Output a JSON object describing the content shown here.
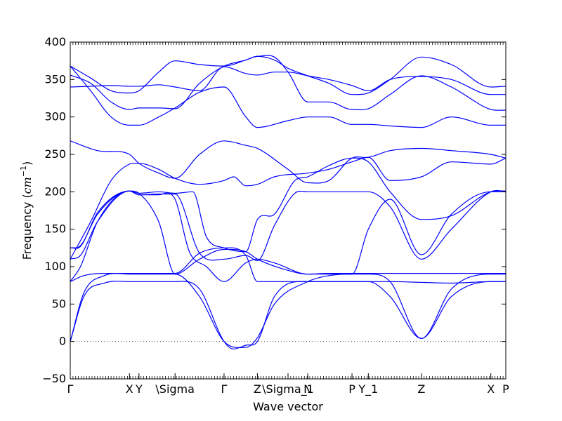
{
  "chart_data": {
    "type": "line",
    "title": "",
    "xlabel": "Wave vector",
    "ylabel_prefix": "Frequency (",
    "ylabel_unit": "cm",
    "ylabel_exp": "−1",
    "ylabel_suffix": ")",
    "xlim": [
      0,
      640
    ],
    "ylim": [
      -50,
      400
    ],
    "yticks": [
      -50,
      0,
      50,
      100,
      150,
      200,
      250,
      300,
      350,
      400
    ],
    "ytick_labels": [
      "−50",
      "0",
      "50",
      "100",
      "150",
      "200",
      "250",
      "300",
      "350",
      "400"
    ],
    "xtick_labels": [
      {
        "x": 0,
        "label": "Γ"
      },
      {
        "x": 87,
        "label": "X"
      },
      {
        "x": 101,
        "label": "Y"
      },
      {
        "x": 154,
        "label": "\\Sigma"
      },
      {
        "x": 226,
        "label": "Γ"
      },
      {
        "x": 275,
        "label": "Z"
      },
      {
        "x": 320,
        "label": "\\Sigma_1"
      },
      {
        "x": 349,
        "label": "N"
      },
      {
        "x": 414,
        "label": "P"
      },
      {
        "x": 438,
        "label": "Y_1"
      },
      {
        "x": 516,
        "label": "Z"
      },
      {
        "x": 618,
        "label": "X"
      },
      {
        "x": 640,
        "label": "P"
      }
    ],
    "line_color": "#0000ff",
    "zero_line": true,
    "grid": false,
    "series": [
      {
        "x": [
          0,
          20,
          50,
          87,
          101,
          130,
          154,
          190,
          226,
          240,
          258,
          275,
          300,
          349,
          380,
          414,
          438,
          470,
          516,
          560,
          618,
          640
        ],
        "y": [
          0,
          60,
          78,
          80,
          80,
          80,
          80,
          70,
          0,
          -10,
          -5,
          0,
          60,
          80,
          80,
          80,
          80,
          60,
          4,
          60,
          80,
          80
        ]
      },
      {
        "x": [
          0,
          20,
          50,
          87,
          101,
          130,
          154,
          190,
          226,
          258,
          275,
          300,
          349,
          380,
          414,
          438,
          470,
          516,
          560,
          618,
          640
        ],
        "y": [
          0,
          65,
          88,
          90,
          90,
          90,
          90,
          60,
          0,
          -8,
          5,
          50,
          80,
          88,
          90,
          90,
          80,
          4,
          70,
          90,
          90
        ]
      },
      {
        "x": [
          0,
          20,
          50,
          87,
          101,
          130,
          154,
          190,
          226,
          258,
          275,
          310,
          349,
          380,
          414,
          438,
          470,
          516,
          560,
          618,
          640
        ],
        "y": [
          80,
          88,
          91,
          91,
          91,
          91,
          91,
          118,
          125,
          115,
          80,
          80,
          80,
          80,
          80,
          80,
          80,
          79,
          78,
          80,
          80
        ]
      },
      {
        "x": [
          0,
          15,
          40,
          87,
          101,
          130,
          154,
          190,
          226,
          258,
          275,
          320,
          349,
          380,
          414,
          438,
          470,
          516,
          560,
          618,
          640
        ],
        "y": [
          80,
          100,
          160,
          201,
          198,
          160,
          90,
          110,
          123,
          120,
          110,
          95,
          90,
          91,
          91,
          91,
          91,
          91,
          91,
          91,
          91
        ]
      },
      {
        "x": [
          0,
          15,
          40,
          87,
          101,
          130,
          154,
          175,
          200,
          226,
          258,
          275,
          300,
          349,
          380,
          414,
          438,
          470,
          516,
          560,
          618,
          640
        ],
        "y": [
          110,
          115,
          160,
          201,
          196,
          196,
          190,
          120,
          100,
          80,
          105,
          110,
          105,
          90,
          90,
          90,
          150,
          190,
          116,
          170,
          200,
          200
        ]
      },
      {
        "x": [
          0,
          15,
          40,
          87,
          101,
          130,
          154,
          190,
          226,
          258,
          275,
          300,
          330,
          349,
          380,
          414,
          438,
          470,
          516,
          560,
          618,
          640
        ],
        "y": [
          125,
          128,
          170,
          201,
          196,
          197,
          197,
          118,
          110,
          115,
          108,
          155,
          198,
          200,
          200,
          200,
          200,
          180,
          110,
          150,
          200,
          201
        ]
      },
      {
        "x": [
          0,
          15,
          40,
          87,
          101,
          130,
          154,
          180,
          200,
          226,
          258,
          275,
          300,
          330,
          349,
          380,
          414,
          438,
          470,
          516,
          560,
          618,
          640
        ],
        "y": [
          125,
          127,
          172,
          201,
          198,
          200,
          198,
          200,
          140,
          125,
          120,
          163,
          170,
          215,
          220,
          235,
          245,
          240,
          200,
          163,
          168,
          200,
          201
        ]
      },
      {
        "x": [
          0,
          40,
          87,
          101,
          130,
          154,
          190,
          226,
          258,
          275,
          320,
          349,
          380,
          414,
          438,
          470,
          516,
          560,
          618,
          640
        ],
        "y": [
          268,
          255,
          250,
          238,
          225,
          218,
          250,
          268,
          262,
          258,
          230,
          212,
          215,
          245,
          246,
          255,
          258,
          255,
          250,
          245
        ]
      },
      {
        "x": [
          0,
          30,
          60,
          87,
          101,
          130,
          154,
          190,
          226,
          240,
          258,
          275,
          300,
          349,
          380,
          414,
          438,
          470,
          516,
          560,
          618,
          640
        ],
        "y": [
          110,
          160,
          215,
          237,
          238,
          230,
          218,
          210,
          215,
          220,
          208,
          210,
          220,
          225,
          230,
          240,
          246,
          215,
          220,
          240,
          237,
          245
        ]
      },
      {
        "x": [
          0,
          30,
          60,
          87,
          101,
          130,
          154,
          190,
          226,
          258,
          275,
          320,
          349,
          380,
          414,
          438,
          470,
          516,
          560,
          618,
          640
        ],
        "y": [
          368,
          335,
          300,
          289,
          289,
          300,
          312,
          333,
          340,
          300,
          286,
          295,
          300,
          300,
          290,
          290,
          288,
          286,
          300,
          289,
          289
        ]
      },
      {
        "x": [
          0,
          30,
          60,
          87,
          101,
          130,
          154,
          190,
          226,
          258,
          275,
          300,
          320,
          349,
          380,
          414,
          438,
          470,
          516,
          560,
          618,
          640
        ],
        "y": [
          356,
          345,
          320,
          310,
          312,
          312,
          311,
          345,
          368,
          376,
          381,
          380,
          360,
          320,
          320,
          310,
          311,
          330,
          355,
          340,
          310,
          309
        ]
      },
      {
        "x": [
          0,
          30,
          60,
          87,
          101,
          130,
          154,
          190,
          226,
          258,
          275,
          300,
          320,
          349,
          380,
          414,
          438,
          470,
          516,
          560,
          618,
          640
        ],
        "y": [
          368,
          352,
          335,
          332,
          335,
          360,
          375,
          370,
          368,
          376,
          381,
          376,
          365,
          355,
          345,
          330,
          332,
          350,
          380,
          370,
          340,
          341
        ]
      },
      {
        "x": [
          0,
          30,
          60,
          87,
          101,
          130,
          154,
          190,
          226,
          258,
          275,
          300,
          320,
          349,
          380,
          414,
          438,
          470,
          516,
          560,
          618,
          640
        ],
        "y": [
          340,
          341,
          342,
          341,
          341,
          343,
          340,
          335,
          367,
          358,
          356,
          360,
          360,
          355,
          350,
          342,
          335,
          350,
          354,
          350,
          330,
          330
        ]
      }
    ]
  }
}
